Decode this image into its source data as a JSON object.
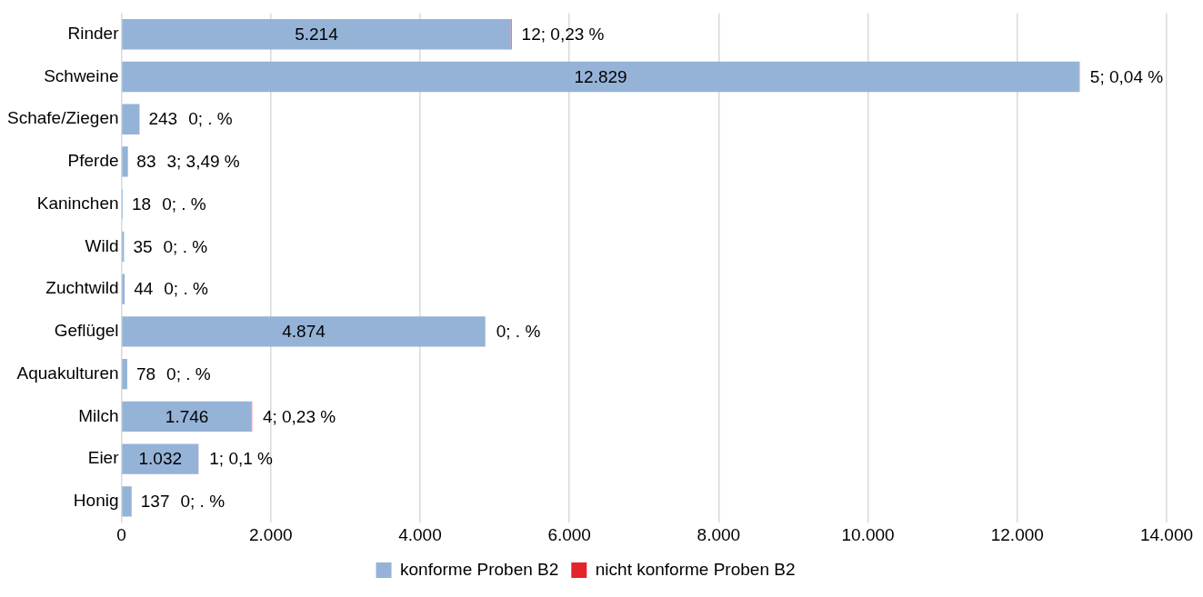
{
  "chart_data": {
    "type": "bar",
    "orientation": "horizontal",
    "stacked": true,
    "categories": [
      "Rinder",
      "Schweine",
      "Schafe/Ziegen",
      "Pferde",
      "Kaninchen",
      "Wild",
      "Zuchtwild",
      "Geflügel",
      "Aquakulturen",
      "Milch",
      "Eier",
      "Honig"
    ],
    "series": [
      {
        "name": "konforme Proben B2",
        "color": "#95b3d7",
        "values": [
          5214,
          12829,
          243,
          83,
          18,
          35,
          44,
          4874,
          78,
          1746,
          1032,
          137
        ],
        "value_labels": [
          "5.214",
          "12.829",
          "243",
          "83",
          "18",
          "35",
          "44",
          "4.874",
          "78",
          "1.746",
          "1.032",
          "137"
        ]
      },
      {
        "name": "nicht konforme Proben B2",
        "color": "#e3242b",
        "values": [
          12,
          5,
          0,
          3,
          0,
          0,
          0,
          0,
          0,
          4,
          1,
          0
        ],
        "value_labels": [
          "12; 0,23 %",
          "5; 0,04 %",
          "0; . %",
          "3; 3,49 %",
          "0; . %",
          "0; . %",
          "0; . %",
          "0; . %",
          "0; . %",
          "4; 0,23 %",
          "1; 0,1 %",
          "0; . %"
        ]
      }
    ],
    "xlim": [
      0,
      14000
    ],
    "xticks": [
      0,
      {
        "value": 2000,
        "label": "2.000"
      },
      {
        "value": 4000,
        "label": "4.000"
      },
      {
        "value": 6000,
        "label": "6.000"
      },
      {
        "value": 8000,
        "label": "8.000"
      },
      {
        "value": 10000,
        "label": "10.000"
      },
      {
        "value": 12000,
        "label": "12.000"
      },
      {
        "value": 14000,
        "label": "14.000"
      }
    ],
    "grid": "x",
    "legend": "bottom"
  }
}
